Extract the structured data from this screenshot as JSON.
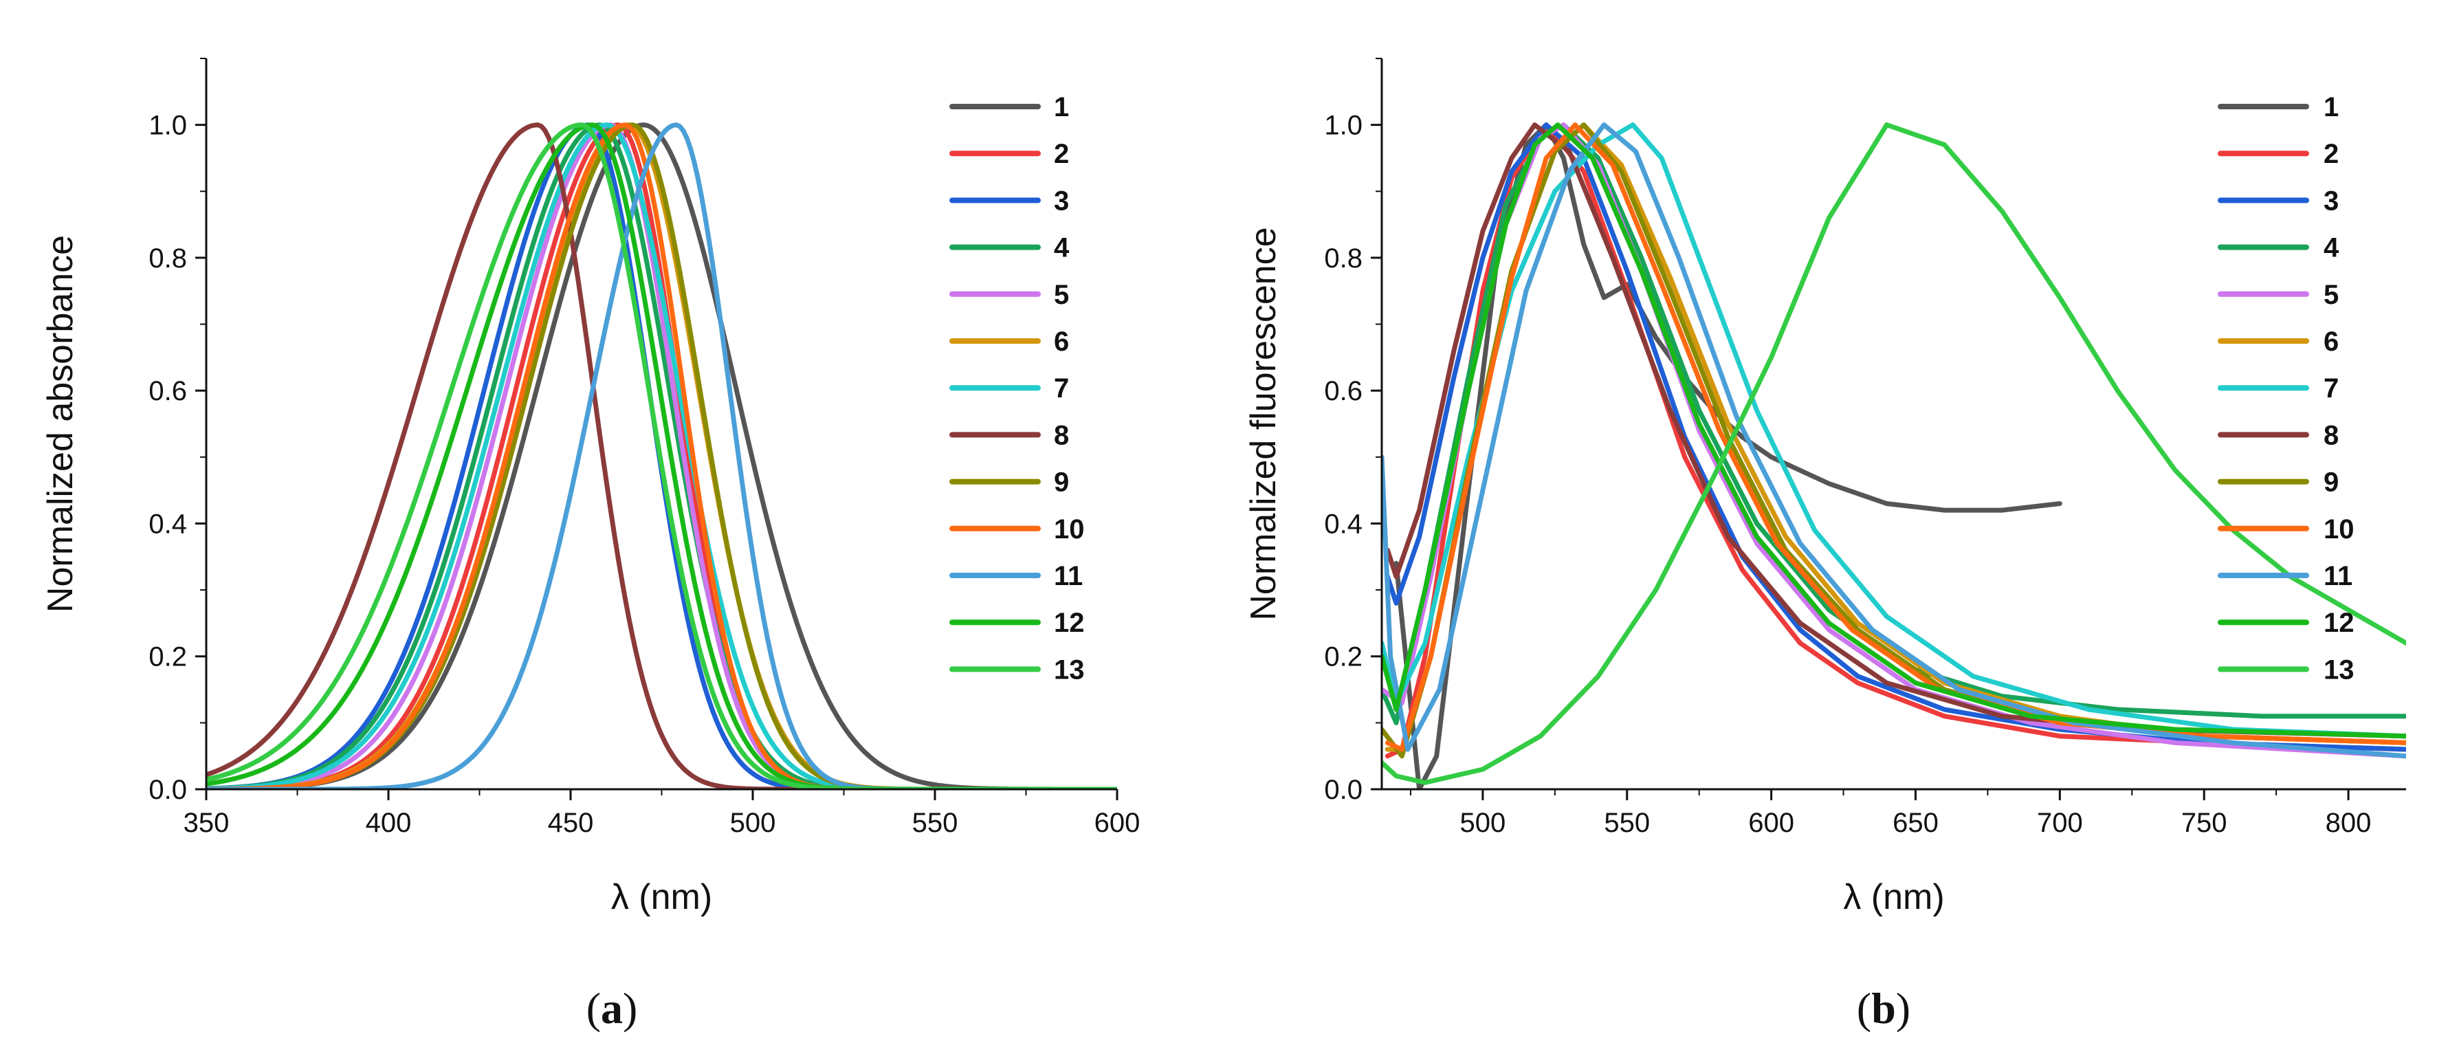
{
  "chart_data": [
    {
      "type": "line",
      "panel": "a",
      "caption_open": "(",
      "caption_letter": "a",
      "caption_close": ")",
      "title": "",
      "xlabel": "λ (nm)",
      "ylabel": "Normalized absorbance",
      "xlim": [
        350,
        600
      ],
      "ylim": [
        0,
        1.1
      ],
      "xticks": [
        350,
        400,
        450,
        500,
        550,
        600
      ],
      "xtick_labels": [
        "350",
        "400",
        "450",
        "500",
        "550",
        "600"
      ],
      "yticks": [
        0,
        0.2,
        0.4,
        0.6,
        0.8,
        1.0
      ],
      "ytick_labels": [
        "0.0",
        "0.2",
        "0.4",
        "0.6",
        "0.8",
        "1.0"
      ],
      "legend_position": "top-right",
      "series": [
        {
          "name": "1",
          "color": "#555555",
          "peak": 470,
          "wl": 46,
          "wr": 40,
          "base": 0
        },
        {
          "name": "2",
          "color": "#ee3b3b",
          "peak": 463,
          "wl": 44,
          "wr": 26,
          "base": 0
        },
        {
          "name": "3",
          "color": "#1f5fd6",
          "peak": 455,
          "wl": 45,
          "wr": 26,
          "base": 0
        },
        {
          "name": "4",
          "color": "#1aa35a",
          "peak": 458,
          "wl": 46,
          "wr": 30,
          "base": 0
        },
        {
          "name": "5",
          "color": "#cc77ee",
          "peak": 461,
          "wl": 45,
          "wr": 27,
          "base": 0
        },
        {
          "name": "6",
          "color": "#d4960a",
          "peak": 466,
          "wl": 45,
          "wr": 30,
          "base": 0
        },
        {
          "name": "7",
          "color": "#22cccc",
          "peak": 460,
          "wl": 46,
          "wr": 31,
          "base": 0
        },
        {
          "name": "8",
          "color": "#8b3a3a",
          "peak": 441,
          "wl": 52,
          "wr": 24,
          "base": 0
        },
        {
          "name": "9",
          "color": "#8a8a00",
          "peak": 467,
          "wl": 45,
          "wr": 29,
          "base": 0
        },
        {
          "name": "10",
          "color": "#ff6a10",
          "peak": 465,
          "wl": 44,
          "wr": 25,
          "base": 0
        },
        {
          "name": "11",
          "color": "#4a9fd8",
          "peak": 479,
          "wl": 36,
          "wr": 23,
          "base": 0
        },
        {
          "name": "12",
          "color": "#18b818",
          "peak": 456,
          "wl": 54,
          "wr": 29,
          "base": 0
        },
        {
          "name": "13",
          "color": "#33cc44",
          "peak": 453,
          "wl": 56,
          "wr": 29,
          "base": 0
        }
      ]
    },
    {
      "type": "line",
      "panel": "b",
      "caption_open": "(",
      "caption_letter": "b",
      "caption_close": ")",
      "title": "",
      "xlabel": "λ (nm)",
      "ylabel": "Normalized fluorescence",
      "xlim": [
        465,
        820
      ],
      "ylim": [
        0,
        1.1
      ],
      "xticks": [
        500,
        550,
        600,
        650,
        700,
        750,
        800
      ],
      "xtick_labels": [
        "500",
        "550",
        "600",
        "650",
        "700",
        "750",
        "800"
      ],
      "yticks": [
        0,
        0.2,
        0.4,
        0.6,
        0.8,
        1.0
      ],
      "ytick_labels": [
        "0.0",
        "0.2",
        "0.4",
        "0.6",
        "0.8",
        "1.0"
      ],
      "legend_position": "top-right",
      "series": [
        {
          "name": "1",
          "color": "#555555",
          "points": [
            [
              470,
              0.34
            ],
            [
              478,
              0.0
            ],
            [
              484,
              0.05
            ],
            [
              495,
              0.45
            ],
            [
              505,
              0.8
            ],
            [
              515,
              0.97
            ],
            [
              522,
              1.0
            ],
            [
              528,
              0.95
            ],
            [
              535,
              0.82
            ],
            [
              542,
              0.74
            ],
            [
              550,
              0.76
            ],
            [
              560,
              0.68
            ],
            [
              570,
              0.62
            ],
            [
              580,
              0.57
            ],
            [
              590,
              0.53
            ],
            [
              600,
              0.5
            ],
            [
              620,
              0.46
            ],
            [
              640,
              0.43
            ],
            [
              660,
              0.42
            ],
            [
              680,
              0.42
            ],
            [
              700,
              0.43
            ]
          ]
        },
        {
          "name": "2",
          "color": "#ee3b3b",
          "points": [
            [
              467,
              0.05
            ],
            [
              472,
              0.06
            ],
            [
              480,
              0.2
            ],
            [
              490,
              0.48
            ],
            [
              500,
              0.75
            ],
            [
              510,
              0.92
            ],
            [
              522,
              1.0
            ],
            [
              535,
              0.93
            ],
            [
              550,
              0.75
            ],
            [
              570,
              0.5
            ],
            [
              590,
              0.33
            ],
            [
              610,
              0.22
            ],
            [
              630,
              0.16
            ],
            [
              660,
              0.11
            ],
            [
              700,
              0.08
            ],
            [
              750,
              0.07
            ],
            [
              820,
              0.06
            ]
          ]
        },
        {
          "name": "3",
          "color": "#1f5fd6",
          "points": [
            [
              467,
              0.32
            ],
            [
              470,
              0.28
            ],
            [
              478,
              0.38
            ],
            [
              490,
              0.62
            ],
            [
              500,
              0.8
            ],
            [
              510,
              0.93
            ],
            [
              522,
              1.0
            ],
            [
              535,
              0.95
            ],
            [
              550,
              0.78
            ],
            [
              570,
              0.53
            ],
            [
              590,
              0.35
            ],
            [
              610,
              0.24
            ],
            [
              630,
              0.17
            ],
            [
              660,
              0.12
            ],
            [
              700,
              0.09
            ],
            [
              750,
              0.07
            ],
            [
              820,
              0.06
            ]
          ]
        },
        {
          "name": "4",
          "color": "#1aa35a",
          "points": [
            [
              465,
              0.15
            ],
            [
              470,
              0.1
            ],
            [
              480,
              0.3
            ],
            [
              495,
              0.62
            ],
            [
              508,
              0.88
            ],
            [
              520,
              0.98
            ],
            [
              528,
              1.0
            ],
            [
              540,
              0.95
            ],
            [
              555,
              0.8
            ],
            [
              575,
              0.57
            ],
            [
              595,
              0.4
            ],
            [
              620,
              0.27
            ],
            [
              650,
              0.18
            ],
            [
              680,
              0.14
            ],
            [
              720,
              0.12
            ],
            [
              770,
              0.11
            ],
            [
              820,
              0.11
            ]
          ]
        },
        {
          "name": "5",
          "color": "#cc77ee",
          "points": [
            [
              465,
              0.15
            ],
            [
              472,
              0.13
            ],
            [
              482,
              0.32
            ],
            [
              495,
              0.6
            ],
            [
              508,
              0.85
            ],
            [
              520,
              0.98
            ],
            [
              528,
              1.0
            ],
            [
              540,
              0.94
            ],
            [
              555,
              0.78
            ],
            [
              575,
              0.54
            ],
            [
              595,
              0.37
            ],
            [
              620,
              0.24
            ],
            [
              650,
              0.15
            ],
            [
              690,
              0.1
            ],
            [
              740,
              0.07
            ],
            [
              820,
              0.05
            ]
          ]
        },
        {
          "name": "6",
          "color": "#d4960a",
          "points": [
            [
              467,
              0.06
            ],
            [
              472,
              0.06
            ],
            [
              482,
              0.2
            ],
            [
              495,
              0.48
            ],
            [
              510,
              0.78
            ],
            [
              525,
              0.96
            ],
            [
              535,
              1.0
            ],
            [
              548,
              0.94
            ],
            [
              565,
              0.77
            ],
            [
              585,
              0.55
            ],
            [
              605,
              0.38
            ],
            [
              630,
              0.25
            ],
            [
              660,
              0.16
            ],
            [
              700,
              0.11
            ],
            [
              750,
              0.08
            ],
            [
              820,
              0.07
            ]
          ]
        },
        {
          "name": "7",
          "color": "#22cccc",
          "points": [
            [
              465,
              0.22
            ],
            [
              470,
              0.13
            ],
            [
              480,
              0.22
            ],
            [
              495,
              0.5
            ],
            [
              510,
              0.75
            ],
            [
              525,
              0.9
            ],
            [
              540,
              0.97
            ],
            [
              552,
              1.0
            ],
            [
              562,
              0.95
            ],
            [
              575,
              0.8
            ],
            [
              595,
              0.57
            ],
            [
              615,
              0.39
            ],
            [
              640,
              0.26
            ],
            [
              670,
              0.17
            ],
            [
              710,
              0.12
            ],
            [
              760,
              0.09
            ],
            [
              820,
              0.08
            ]
          ]
        },
        {
          "name": "8",
          "color": "#8b3a3a",
          "points": [
            [
              467,
              0.36
            ],
            [
              470,
              0.32
            ],
            [
              478,
              0.42
            ],
            [
              490,
              0.66
            ],
            [
              500,
              0.84
            ],
            [
              510,
              0.95
            ],
            [
              518,
              1.0
            ],
            [
              530,
              0.96
            ],
            [
              545,
              0.8
            ],
            [
              565,
              0.57
            ],
            [
              585,
              0.38
            ],
            [
              610,
              0.25
            ],
            [
              640,
              0.16
            ],
            [
              680,
              0.11
            ],
            [
              730,
              0.09
            ],
            [
              820,
              0.08
            ]
          ]
        },
        {
          "name": "9",
          "color": "#8a8a00",
          "points": [
            [
              465,
              0.09
            ],
            [
              472,
              0.05
            ],
            [
              482,
              0.2
            ],
            [
              495,
              0.48
            ],
            [
              510,
              0.78
            ],
            [
              525,
              0.96
            ],
            [
              535,
              1.0
            ],
            [
              548,
              0.93
            ],
            [
              565,
              0.75
            ],
            [
              585,
              0.53
            ],
            [
              605,
              0.36
            ],
            [
              630,
              0.24
            ],
            [
              660,
              0.15
            ],
            [
              700,
              0.1
            ],
            [
              750,
              0.08
            ],
            [
              820,
              0.07
            ]
          ]
        },
        {
          "name": "10",
          "color": "#ff6a10",
          "points": [
            [
              467,
              0.07
            ],
            [
              472,
              0.06
            ],
            [
              482,
              0.2
            ],
            [
              495,
              0.47
            ],
            [
              510,
              0.77
            ],
            [
              522,
              0.95
            ],
            [
              532,
              1.0
            ],
            [
              545,
              0.94
            ],
            [
              562,
              0.76
            ],
            [
              582,
              0.54
            ],
            [
              602,
              0.37
            ],
            [
              628,
              0.24
            ],
            [
              658,
              0.15
            ],
            [
              700,
              0.1
            ],
            [
              750,
              0.08
            ],
            [
              820,
              0.07
            ]
          ]
        },
        {
          "name": "11",
          "color": "#4a9fd8",
          "points": [
            [
              465,
              0.5
            ],
            [
              468,
              0.2
            ],
            [
              474,
              0.06
            ],
            [
              485,
              0.15
            ],
            [
              500,
              0.45
            ],
            [
              515,
              0.75
            ],
            [
              530,
              0.93
            ],
            [
              542,
              1.0
            ],
            [
              553,
              0.96
            ],
            [
              568,
              0.8
            ],
            [
              588,
              0.56
            ],
            [
              610,
              0.37
            ],
            [
              635,
              0.24
            ],
            [
              665,
              0.15
            ],
            [
              705,
              0.1
            ],
            [
              760,
              0.07
            ],
            [
              820,
              0.05
            ]
          ]
        },
        {
          "name": "12",
          "color": "#18b818",
          "points": [
            [
              465,
              0.2
            ],
            [
              470,
              0.12
            ],
            [
              480,
              0.3
            ],
            [
              495,
              0.6
            ],
            [
              508,
              0.85
            ],
            [
              518,
              0.97
            ],
            [
              526,
              1.0
            ],
            [
              538,
              0.95
            ],
            [
              555,
              0.78
            ],
            [
              575,
              0.55
            ],
            [
              595,
              0.38
            ],
            [
              620,
              0.25
            ],
            [
              650,
              0.16
            ],
            [
              690,
              0.11
            ],
            [
              740,
              0.09
            ],
            [
              820,
              0.08
            ]
          ]
        },
        {
          "name": "13",
          "color": "#33cc44",
          "points": [
            [
              465,
              0.04
            ],
            [
              470,
              0.02
            ],
            [
              480,
              0.01
            ],
            [
              500,
              0.03
            ],
            [
              520,
              0.08
            ],
            [
              540,
              0.17
            ],
            [
              560,
              0.3
            ],
            [
              580,
              0.47
            ],
            [
              600,
              0.65
            ],
            [
              620,
              0.86
            ],
            [
              640,
              1.0
            ],
            [
              660,
              0.97
            ],
            [
              680,
              0.87
            ],
            [
              700,
              0.74
            ],
            [
              720,
              0.6
            ],
            [
              740,
              0.48
            ],
            [
              760,
              0.39
            ],
            [
              780,
              0.32
            ],
            [
              800,
              0.27
            ],
            [
              820,
              0.22
            ]
          ]
        }
      ]
    }
  ]
}
